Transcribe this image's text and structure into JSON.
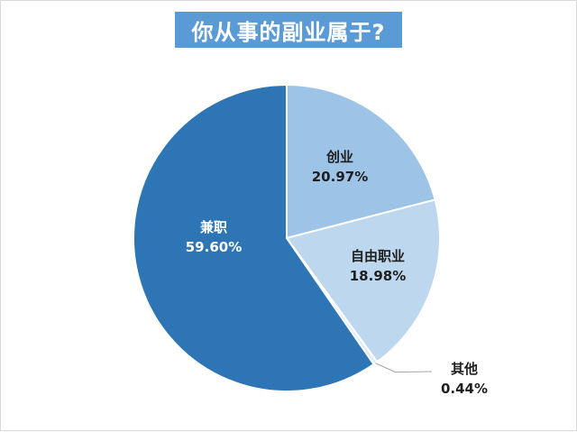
{
  "chart_data": {
    "type": "pie",
    "title": "你从事的副业属于?",
    "slices": [
      {
        "label": "创业",
        "percent_text": "20.97%",
        "value": 20.97,
        "color": "#9dc3e6",
        "label_color": "#1f1f1f"
      },
      {
        "label": "自由职业",
        "percent_text": "18.98%",
        "value": 18.98,
        "color": "#bdd7ee",
        "label_color": "#1f1f1f"
      },
      {
        "label": "其他",
        "percent_text": "0.44%",
        "value": 0.44,
        "color": "#deebf7",
        "label_color": "#1f1f1f"
      },
      {
        "label": "兼职",
        "percent_text": "59.60%",
        "value": 59.6,
        "color": "#2e75b6",
        "label_color": "#ffffff"
      }
    ],
    "title_bg": "#5b9bd5",
    "legend": "none"
  }
}
